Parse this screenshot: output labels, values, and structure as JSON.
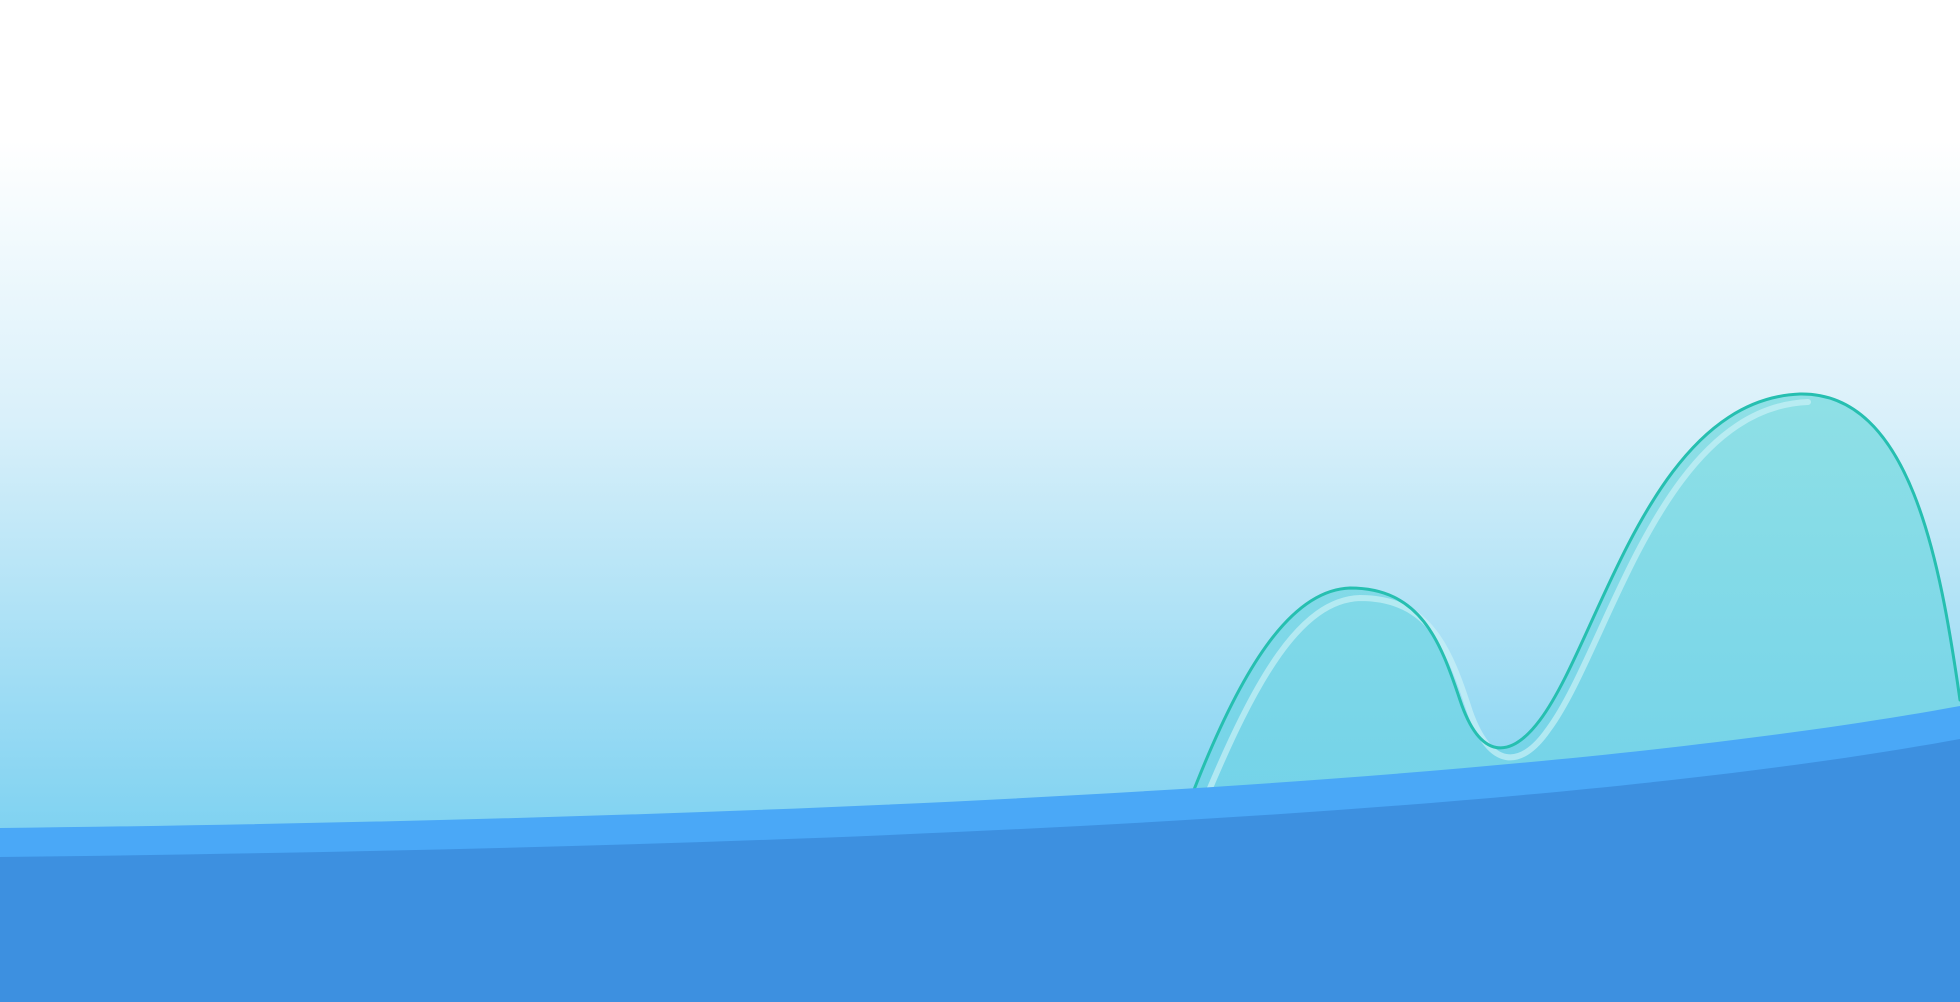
{
  "colors": {
    "sky_top": "#ffffff",
    "sky_mid": "#d9f0fa",
    "sky_bottom": "#7fd2f1",
    "hill_fill": "#8fe0e6",
    "hill_fill_deep": "#72d2e9",
    "hill_outline": "#26bfb0",
    "hill_highlight": "#c9f1f7",
    "band_light": "#4aa8f7",
    "band_dark": "#3d90e0",
    "band_shadow": "#2e73b8"
  }
}
